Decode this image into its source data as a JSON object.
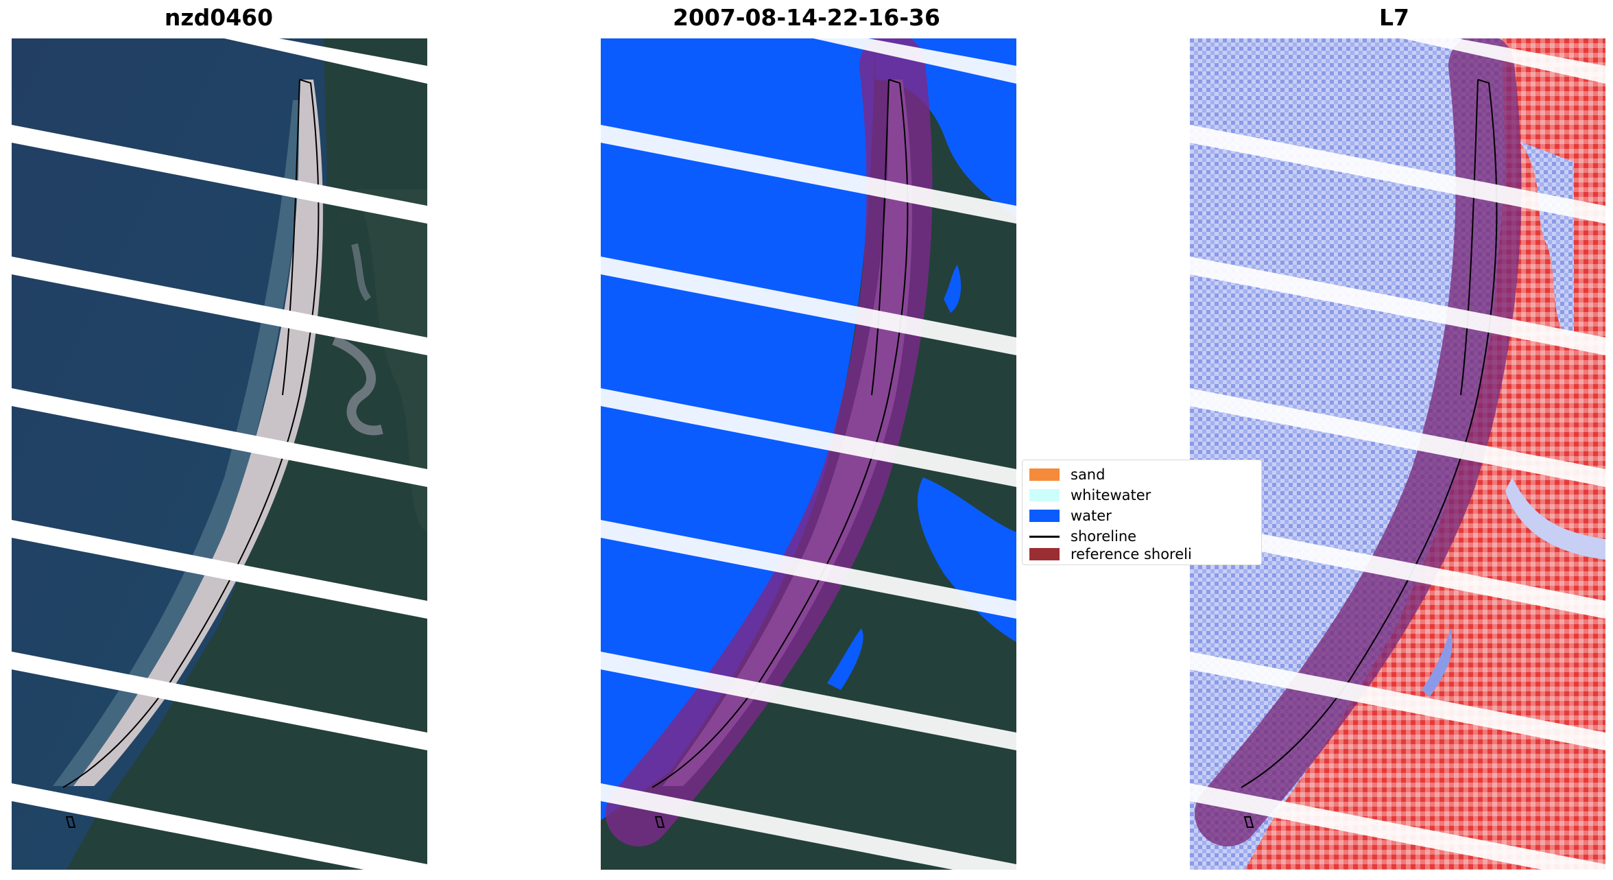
{
  "panels": [
    {
      "title": "nzd0460",
      "kind": "rgb"
    },
    {
      "title": "2007-08-14-22-16-36",
      "kind": "classified"
    },
    {
      "title": "L7",
      "kind": "index"
    }
  ],
  "legend": {
    "items": [
      {
        "label": "sand",
        "color": "#f58a3a"
      },
      {
        "label": "whitewater",
        "color": "#ccfffc"
      },
      {
        "label": "water",
        "color": "#0a5cff"
      },
      {
        "label": "shoreline",
        "color": "#000000"
      },
      {
        "label": "reference shoreli",
        "color": "#9b2e33"
      }
    ]
  },
  "colors": {
    "ocean": "#213c5e",
    "land": "#1f3a30",
    "beach": "#c8c3c6",
    "water_class": "#0a5cff",
    "buffer": "#7a2a8a",
    "index_blue": "#8ca0f0",
    "index_red": "#ee3a3a"
  }
}
